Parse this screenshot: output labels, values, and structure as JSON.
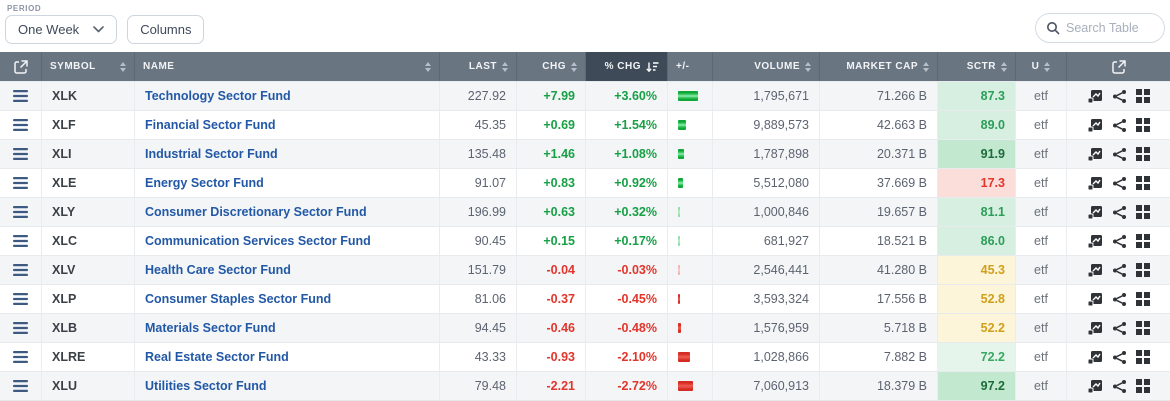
{
  "toolbar": {
    "period_label": "PERIOD",
    "period_value": "One Week",
    "columns_label": "Columns",
    "search_placeholder": "Search Table"
  },
  "table": {
    "columns": [
      {
        "key": "expand",
        "label": "",
        "icon": "external-link-icon"
      },
      {
        "key": "symbol",
        "label": "SYMBOL",
        "sortable": true,
        "align": "left"
      },
      {
        "key": "name",
        "label": "NAME",
        "sortable": true,
        "align": "left"
      },
      {
        "key": "last",
        "label": "LAST",
        "sortable": true,
        "align": "right"
      },
      {
        "key": "chg",
        "label": "CHG",
        "sortable": true,
        "align": "right"
      },
      {
        "key": "pct_chg",
        "label": "% CHG",
        "sortable": true,
        "align": "right",
        "sorted": "desc"
      },
      {
        "key": "plus_minus",
        "label": "+/-",
        "align": "left"
      },
      {
        "key": "volume",
        "label": "VOLUME",
        "sortable": true,
        "align": "right"
      },
      {
        "key": "market_cap",
        "label": "MARKET CAP",
        "sortable": true,
        "align": "right"
      },
      {
        "key": "sctr",
        "label": "SCTR",
        "sortable": true,
        "align": "right"
      },
      {
        "key": "u",
        "label": "U",
        "sortable": true,
        "align": "center"
      },
      {
        "key": "actions",
        "label": "",
        "icon": "external-link-icon"
      }
    ],
    "row_action_icons": [
      "chart-icon",
      "compare-icon",
      "grid-icon"
    ],
    "rows": [
      {
        "symbol": "XLK",
        "name": "Technology Sector Fund",
        "last": "227.92",
        "chg": "+7.99",
        "pct_chg": "+3.60%",
        "pct_value": 3.6,
        "volume": "1,795,671",
        "market_cap": "71.266 B",
        "sctr": "87.3",
        "sctr_tone": "green",
        "u": "etf"
      },
      {
        "symbol": "XLF",
        "name": "Financial Sector Fund",
        "last": "45.35",
        "chg": "+0.69",
        "pct_chg": "+1.54%",
        "pct_value": 1.54,
        "volume": "9,889,573",
        "market_cap": "42.663 B",
        "sctr": "89.0",
        "sctr_tone": "green",
        "u": "etf"
      },
      {
        "symbol": "XLI",
        "name": "Industrial Sector Fund",
        "last": "135.48",
        "chg": "+1.46",
        "pct_chg": "+1.08%",
        "pct_value": 1.08,
        "volume": "1,787,898",
        "market_cap": "20.371 B",
        "sctr": "91.9",
        "sctr_tone": "green-strong",
        "u": "etf"
      },
      {
        "symbol": "XLE",
        "name": "Energy Sector Fund",
        "last": "91.07",
        "chg": "+0.83",
        "pct_chg": "+0.92%",
        "pct_value": 0.92,
        "volume": "5,512,080",
        "market_cap": "37.669 B",
        "sctr": "17.3",
        "sctr_tone": "red",
        "u": "etf"
      },
      {
        "symbol": "XLY",
        "name": "Consumer Discretionary Sector Fund",
        "last": "196.99",
        "chg": "+0.63",
        "pct_chg": "+0.32%",
        "pct_value": 0.32,
        "volume": "1,000,846",
        "market_cap": "19.657 B",
        "sctr": "81.1",
        "sctr_tone": "green",
        "u": "etf"
      },
      {
        "symbol": "XLC",
        "name": "Communication Services Sector Fund",
        "last": "90.45",
        "chg": "+0.15",
        "pct_chg": "+0.17%",
        "pct_value": 0.17,
        "volume": "681,927",
        "market_cap": "18.521 B",
        "sctr": "86.0",
        "sctr_tone": "green",
        "u": "etf"
      },
      {
        "symbol": "XLV",
        "name": "Health Care Sector Fund",
        "last": "151.79",
        "chg": "-0.04",
        "pct_chg": "-0.03%",
        "pct_value": -0.03,
        "volume": "2,546,441",
        "market_cap": "41.280 B",
        "sctr": "45.3",
        "sctr_tone": "yellow",
        "u": "etf"
      },
      {
        "symbol": "XLP",
        "name": "Consumer Staples Sector Fund",
        "last": "81.06",
        "chg": "-0.37",
        "pct_chg": "-0.45%",
        "pct_value": -0.45,
        "volume": "3,593,324",
        "market_cap": "17.556 B",
        "sctr": "52.8",
        "sctr_tone": "yellow",
        "u": "etf"
      },
      {
        "symbol": "XLB",
        "name": "Materials Sector Fund",
        "last": "94.45",
        "chg": "-0.46",
        "pct_chg": "-0.48%",
        "pct_value": -0.48,
        "volume": "1,576,959",
        "market_cap": "5.718 B",
        "sctr": "52.2",
        "sctr_tone": "yellow",
        "u": "etf"
      },
      {
        "symbol": "XLRE",
        "name": "Real Estate Sector Fund",
        "last": "43.33",
        "chg": "-0.93",
        "pct_chg": "-2.10%",
        "pct_value": -2.1,
        "volume": "1,028,866",
        "market_cap": "7.882 B",
        "sctr": "72.2",
        "sctr_tone": "green-light",
        "u": "etf"
      },
      {
        "symbol": "XLU",
        "name": "Utilities Sector Fund",
        "last": "79.48",
        "chg": "-2.21",
        "pct_chg": "-2.72%",
        "pct_value": -2.72,
        "volume": "7,060,913",
        "market_cap": "18.379 B",
        "sctr": "97.2",
        "sctr_tone": "green-strong",
        "u": "etf"
      }
    ]
  }
}
